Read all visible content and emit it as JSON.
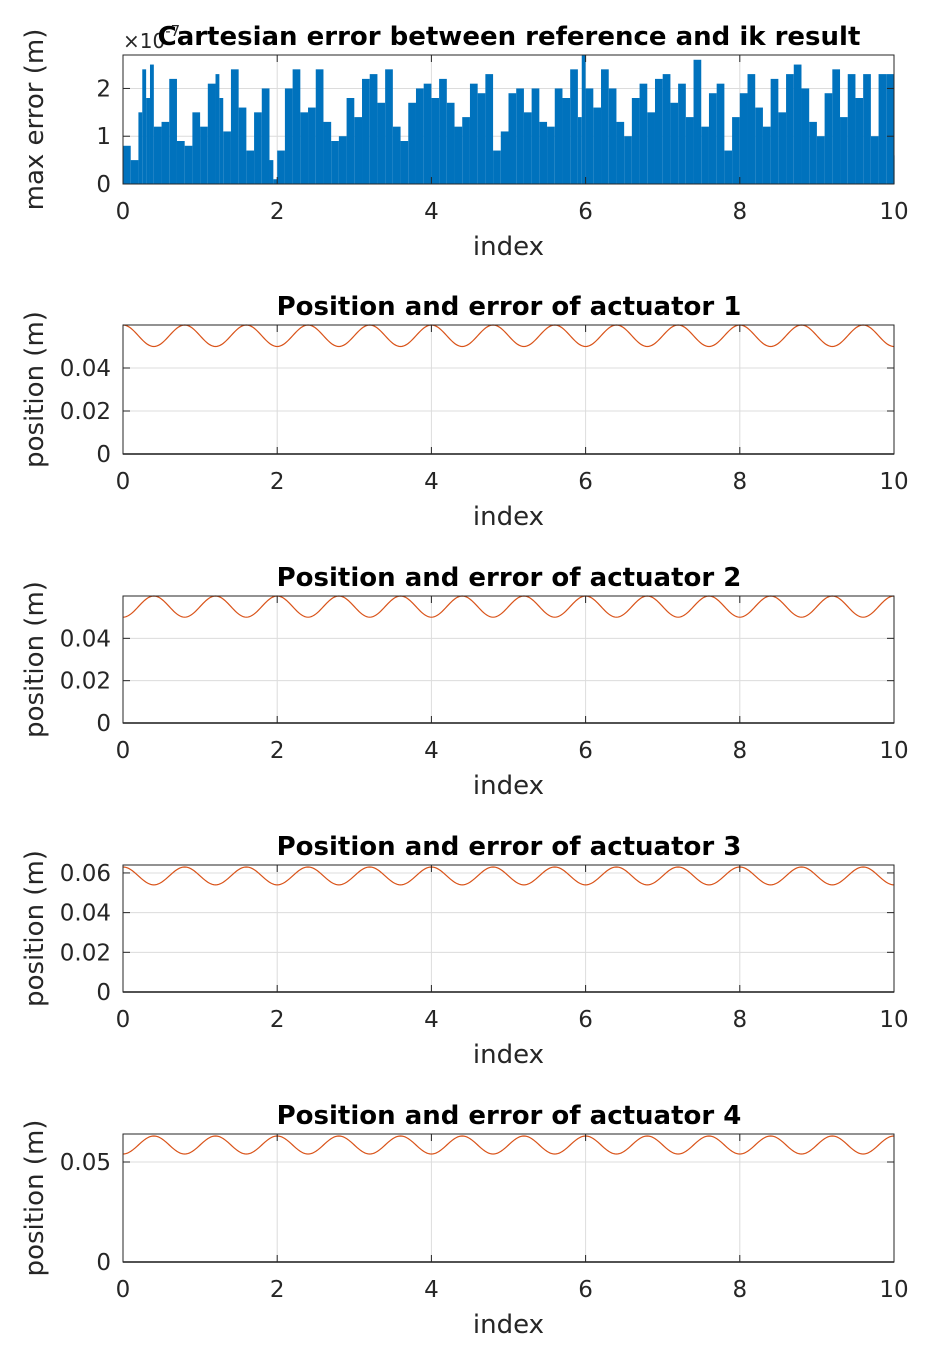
{
  "colors": {
    "error_bars": "#0072BD",
    "position_line": "#D95319",
    "error_line": "#000000",
    "grid": "#dcdcdc",
    "axes": "#262626"
  },
  "chart_data": [
    {
      "type": "bar",
      "title": "Cartesian error between reference and ik result",
      "xlabel": "index",
      "ylabel": "max error (m)",
      "exponent_label": "×10",
      "exponent_power": "-7",
      "xlim": [
        0,
        10
      ],
      "ylim": [
        0,
        2.7
      ],
      "xticks": [
        "0",
        "2",
        "4",
        "6",
        "8",
        "10"
      ],
      "yticks": [
        "0",
        "1",
        "2"
      ],
      "ytick_values": [
        0,
        1,
        2
      ],
      "grid": true,
      "series": [
        {
          "color_key": "error_bars",
          "x": [
            0.0,
            0.1,
            0.2,
            0.25,
            0.3,
            0.35,
            0.4,
            0.5,
            0.6,
            0.7,
            0.8,
            0.9,
            1.0,
            1.1,
            1.2,
            1.25,
            1.3,
            1.4,
            1.5,
            1.6,
            1.7,
            1.8,
            1.9,
            1.95,
            2.0,
            2.1,
            2.2,
            2.3,
            2.4,
            2.5,
            2.6,
            2.7,
            2.8,
            2.9,
            3.0,
            3.1,
            3.2,
            3.3,
            3.4,
            3.5,
            3.6,
            3.7,
            3.8,
            3.9,
            4.0,
            4.1,
            4.2,
            4.3,
            4.4,
            4.5,
            4.6,
            4.7,
            4.8,
            4.9,
            5.0,
            5.1,
            5.2,
            5.3,
            5.4,
            5.5,
            5.6,
            5.7,
            5.8,
            5.9,
            5.95,
            6.0,
            6.1,
            6.2,
            6.3,
            6.4,
            6.5,
            6.6,
            6.7,
            6.8,
            6.9,
            7.0,
            7.1,
            7.2,
            7.3,
            7.4,
            7.5,
            7.6,
            7.7,
            7.8,
            7.9,
            8.0,
            8.1,
            8.2,
            8.3,
            8.4,
            8.5,
            8.6,
            8.7,
            8.8,
            8.9,
            9.0,
            9.1,
            9.2,
            9.3,
            9.4,
            9.5,
            9.6,
            9.7,
            9.8,
            9.9,
            10.0
          ],
          "y": [
            0.8,
            0.5,
            1.5,
            2.4,
            1.8,
            2.5,
            1.2,
            1.3,
            2.2,
            0.9,
            0.8,
            1.5,
            1.2,
            2.1,
            2.3,
            1.8,
            1.1,
            2.4,
            1.6,
            0.7,
            1.5,
            2.0,
            0.5,
            0.1,
            0.7,
            2.0,
            2.4,
            1.5,
            1.6,
            2.4,
            1.3,
            0.9,
            1.0,
            1.8,
            1.4,
            2.2,
            2.3,
            1.7,
            2.4,
            1.2,
            0.9,
            1.7,
            2.0,
            2.1,
            1.8,
            2.2,
            1.7,
            1.2,
            1.4,
            2.1,
            1.9,
            2.3,
            0.7,
            1.1,
            1.9,
            2.0,
            1.5,
            2.0,
            1.3,
            1.2,
            2.0,
            1.8,
            2.4,
            1.4,
            2.7,
            2.0,
            1.6,
            2.4,
            2.0,
            1.3,
            1.0,
            1.8,
            2.1,
            1.5,
            2.2,
            2.3,
            1.7,
            2.1,
            1.4,
            2.6,
            1.2,
            1.9,
            2.1,
            0.7,
            1.4,
            1.9,
            2.3,
            1.6,
            1.2,
            2.2,
            1.5,
            2.3,
            2.5,
            2.0,
            1.3,
            1.0,
            1.9,
            2.4,
            1.4,
            2.3,
            1.8,
            2.3,
            1.0,
            2.3,
            2.3,
            0.6
          ]
        }
      ]
    },
    {
      "type": "line",
      "title": "Position and error of actuator 1",
      "xlabel": "index",
      "ylabel": "position (m)",
      "xlim": [
        0,
        10
      ],
      "ylim": [
        0,
        0.06
      ],
      "xticks": [
        "0",
        "2",
        "4",
        "6",
        "8",
        "10"
      ],
      "yticks": [
        "0",
        "0.02",
        "0.04"
      ],
      "ytick_values": [
        0,
        0.02,
        0.04
      ],
      "grid": true,
      "series": [
        {
          "color_key": "position_line",
          "form": "sinusoid",
          "offset": 0.055,
          "amplitude": 0.005,
          "cycles": 12.5,
          "phase": 0.0
        },
        {
          "color_key": "error_line",
          "form": "constant",
          "value": 0
        }
      ]
    },
    {
      "type": "line",
      "title": "Position and error of actuator 2",
      "xlabel": "index",
      "ylabel": "position (m)",
      "xlim": [
        0,
        10
      ],
      "ylim": [
        0,
        0.06
      ],
      "xticks": [
        "0",
        "2",
        "4",
        "6",
        "8",
        "10"
      ],
      "yticks": [
        "0",
        "0.02",
        "0.04"
      ],
      "ytick_values": [
        0,
        0.02,
        0.04
      ],
      "grid": true,
      "series": [
        {
          "color_key": "position_line",
          "form": "sinusoid",
          "offset": 0.055,
          "amplitude": 0.005,
          "cycles": 12.5,
          "phase": 3.1416
        },
        {
          "color_key": "error_line",
          "form": "constant",
          "value": 0
        }
      ]
    },
    {
      "type": "line",
      "title": "Position and error of actuator 3",
      "xlabel": "index",
      "ylabel": "position (m)",
      "xlim": [
        0,
        10
      ],
      "ylim": [
        0,
        0.064
      ],
      "xticks": [
        "0",
        "2",
        "4",
        "6",
        "8",
        "10"
      ],
      "yticks": [
        "0",
        "0.02",
        "0.04",
        "0.06"
      ],
      "ytick_values": [
        0,
        0.02,
        0.04,
        0.06
      ],
      "grid": true,
      "series": [
        {
          "color_key": "position_line",
          "form": "sinusoid",
          "offset": 0.0585,
          "amplitude": 0.0045,
          "cycles": 12.5,
          "phase": 0.0
        },
        {
          "color_key": "error_line",
          "form": "constant",
          "value": 0
        }
      ]
    },
    {
      "type": "line",
      "title": "Position and error of actuator 4",
      "xlabel": "index",
      "ylabel": "position (m)",
      "xlim": [
        0,
        10
      ],
      "ylim": [
        0,
        0.064
      ],
      "xticks": [
        "0",
        "2",
        "4",
        "6",
        "8",
        "10"
      ],
      "yticks": [
        "0",
        "0.05"
      ],
      "ytick_values": [
        0,
        0.05
      ],
      "grid": true,
      "series": [
        {
          "color_key": "position_line",
          "form": "sinusoid",
          "offset": 0.0585,
          "amplitude": 0.0045,
          "cycles": 12.5,
          "phase": 3.1416
        },
        {
          "color_key": "error_line",
          "form": "constant",
          "value": 0
        }
      ]
    }
  ]
}
